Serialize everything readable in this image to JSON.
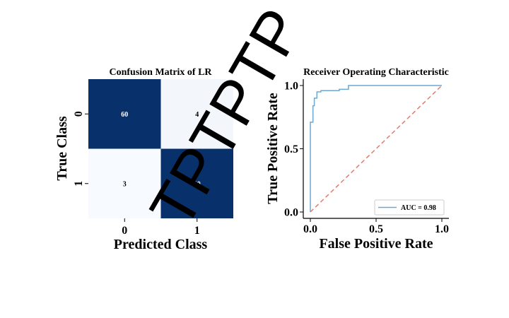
{
  "chart_data": [
    {
      "type": "heatmap",
      "title": "Confusion Matrix of LR",
      "xlabel": "Predicted Class",
      "ylabel": "True Class",
      "x_categories": [
        "0",
        "1"
      ],
      "y_categories": [
        "0",
        "1"
      ],
      "values": [
        [
          60,
          4
        ],
        [
          3,
          60
        ]
      ],
      "colormap": "Blues",
      "colors": {
        "high": "#08306b",
        "low": "#f7fbff",
        "text_on_dark": "#ffffff",
        "text_on_light": "#000000"
      }
    },
    {
      "type": "line",
      "title": "Receiver Operating Characteristic",
      "xlabel": "False Positive Rate",
      "ylabel": "True Positive Rate",
      "xlim": [
        0,
        1
      ],
      "ylim": [
        0,
        1
      ],
      "xticks": [
        "0.0",
        "0.5",
        "1.0"
      ],
      "yticks": [
        "0.0",
        "0.5",
        "1.0"
      ],
      "legend_loc": "lower right",
      "series": [
        {
          "name": "AUC = 0.98",
          "color": "#6fa8d0",
          "style": "solid",
          "points": [
            [
              0.0,
              0.0
            ],
            [
              0.0,
              0.71
            ],
            [
              0.02,
              0.71
            ],
            [
              0.02,
              0.84
            ],
            [
              0.03,
              0.84
            ],
            [
              0.03,
              0.9
            ],
            [
              0.05,
              0.9
            ],
            [
              0.05,
              0.95
            ],
            [
              0.08,
              0.95
            ],
            [
              0.08,
              0.96
            ],
            [
              0.22,
              0.96
            ],
            [
              0.22,
              0.97
            ],
            [
              0.29,
              0.97
            ],
            [
              0.29,
              1.0
            ],
            [
              1.0,
              1.0
            ]
          ]
        },
        {
          "color": "#e27a6e",
          "style": "dashed",
          "points": [
            [
              0,
              0
            ],
            [
              1,
              1
            ]
          ]
        }
      ]
    }
  ],
  "watermark": "TPTPTP"
}
